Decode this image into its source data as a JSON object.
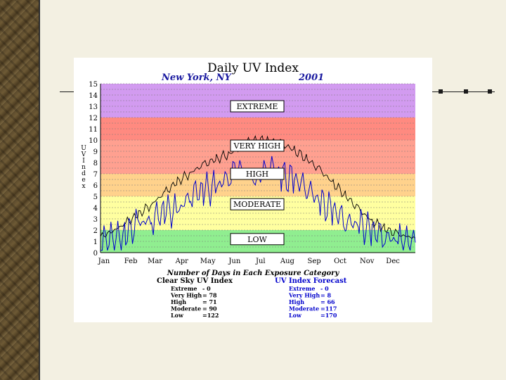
{
  "chart_data": {
    "type": "line",
    "title": "Daily UV Index",
    "location": "New York, NY",
    "year": "2001",
    "ylabel": "UV Index",
    "xlabel": "Number of Days in Each Exposure Category",
    "ylim": [
      0,
      15
    ],
    "yticks": [
      "0",
      "1",
      "2",
      "3",
      "4",
      "5",
      "6",
      "7",
      "8",
      "9",
      "10",
      "11",
      "12",
      "13",
      "14",
      "15"
    ],
    "months": [
      "Jan",
      "Feb",
      "Mar",
      "Apr",
      "May",
      "Jun",
      "Jul",
      "Aug",
      "Sep",
      "Oct",
      "Nov",
      "Dec"
    ],
    "bands": [
      {
        "name": "LOW",
        "from": 0,
        "to": 2,
        "color": "#90ee90"
      },
      {
        "name": "MODERATE",
        "from": 2,
        "to": 5,
        "color": "#ffffa0"
      },
      {
        "name": "HIGH",
        "from": 5,
        "to": 7,
        "color": "#ffd28c"
      },
      {
        "name": "VERY HIGH",
        "from": 7,
        "to": 10,
        "color": "#ffa090"
      },
      {
        "name": "EXTREME",
        "from": 10,
        "to": 12,
        "color": "#ff8a80"
      },
      {
        "name": "EXTREME",
        "from": 12,
        "to": 15,
        "color": "#d29bf0"
      }
    ],
    "band_labels": [
      {
        "text": "EXTREME",
        "y": 13
      },
      {
        "text": "VERY HIGH",
        "y": 9.5
      },
      {
        "text": "HIGH",
        "y": 7
      },
      {
        "text": "MODERATE",
        "y": 4.3
      },
      {
        "text": "LOW",
        "y": 1.2
      }
    ],
    "series": [
      {
        "name": "Clear Sky UV Index",
        "color": "#000000",
        "x": [
          1,
          15,
          30,
          45,
          60,
          75,
          90,
          105,
          120,
          135,
          150,
          160,
          170,
          180,
          195,
          210,
          225,
          240,
          255,
          270,
          285,
          300,
          315,
          330,
          345,
          365
        ],
        "values": [
          1.4,
          1.9,
          2.6,
          3.4,
          4.3,
          5.3,
          6.3,
          7.1,
          7.8,
          8.3,
          8.8,
          9.2,
          9.8,
          9.9,
          10,
          9.7,
          9.1,
          8.3,
          7.3,
          6.2,
          5,
          3.8,
          2.8,
          2.1,
          1.6,
          1.3
        ]
      },
      {
        "name": "UV Index Forecast",
        "color": "#0000cc",
        "x": [
          1,
          15,
          30,
          45,
          60,
          75,
          90,
          105,
          120,
          135,
          150,
          160,
          170,
          180,
          195,
          210,
          225,
          240,
          255,
          270,
          285,
          300,
          315,
          330,
          345,
          365
        ],
        "values": [
          0.8,
          1.2,
          1.6,
          2.6,
          2.9,
          3.8,
          3.6,
          5.2,
          5.6,
          5.8,
          6.9,
          7.6,
          7,
          6.2,
          7.9,
          6.8,
          6.5,
          5.9,
          4.4,
          3.8,
          2.9,
          2.4,
          2.0,
          1.5,
          1.0,
          0.9
        ]
      }
    ],
    "counts": {
      "clear_sky": {
        "title": "Clear Sky UV Index",
        "rows": [
          {
            "label": "Extreme",
            "value": "-   0"
          },
          {
            "label": "Very High",
            "value": "= 78"
          },
          {
            "label": "High",
            "value": "= 71"
          },
          {
            "label": "Moderate",
            "value": "= 90"
          },
          {
            "label": "Low",
            "value": "=122"
          }
        ]
      },
      "forecast": {
        "title": "UV Index Forecast",
        "rows": [
          {
            "label": "Extreme",
            "value": "-   0"
          },
          {
            "label": "Very High",
            "value": "=   8"
          },
          {
            "label": "High",
            "value": "= 66"
          },
          {
            "label": "Moderate",
            "value": "=117"
          },
          {
            "label": "Low",
            "value": "=170"
          }
        ]
      }
    }
  },
  "colors": {
    "forecast": "#0000cc",
    "clear": "#000000",
    "title_blue": "#1a1aa0"
  }
}
